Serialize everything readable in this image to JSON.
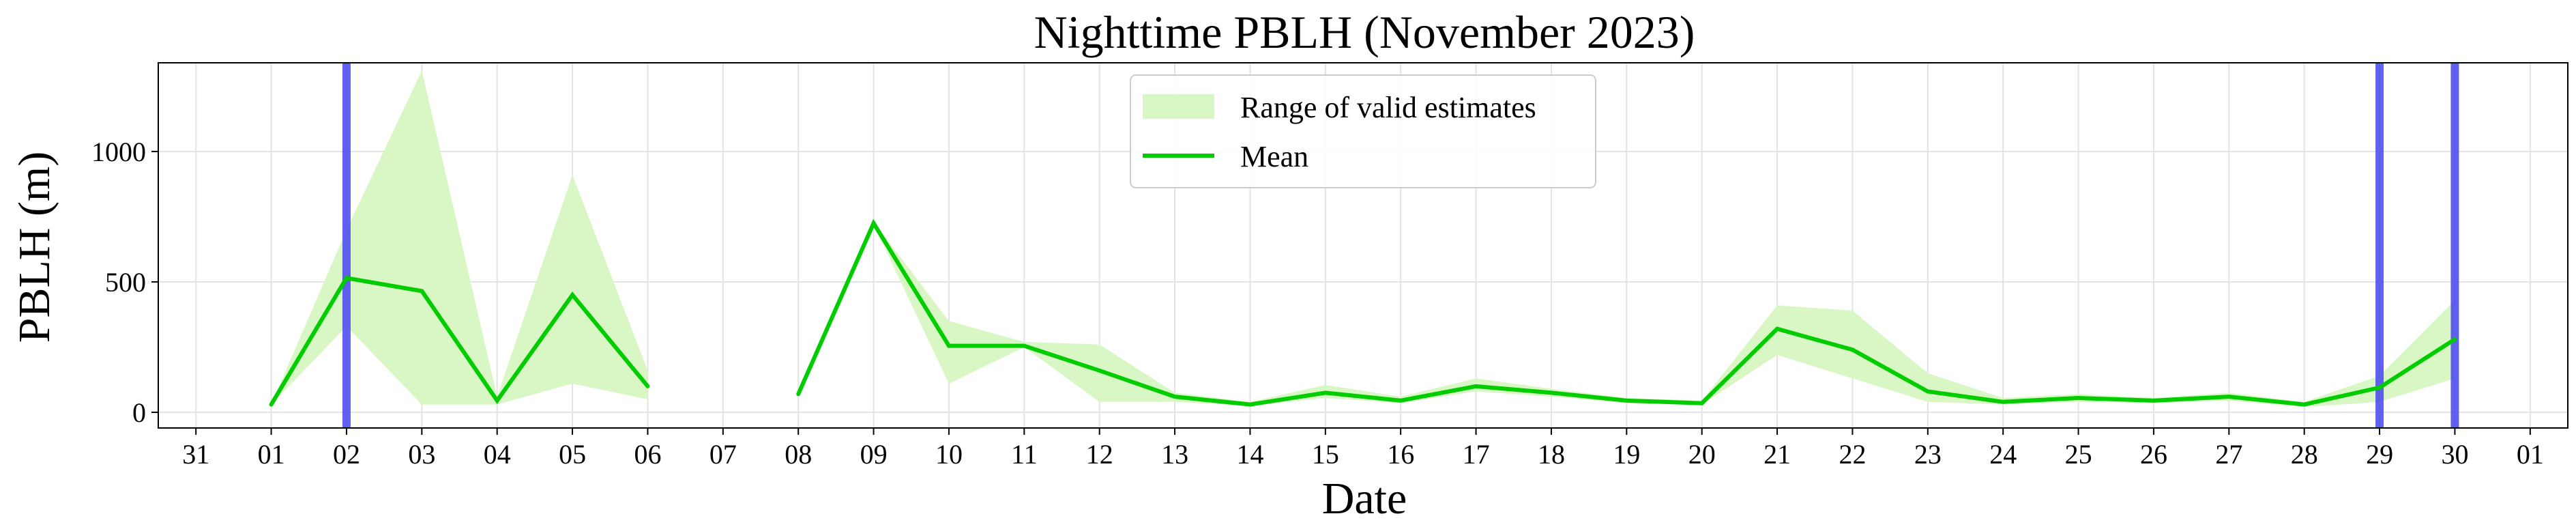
{
  "chart_data": {
    "type": "line",
    "title": "Nighttime PBLH (November 2023)",
    "xlabel": "Date",
    "ylabel": "PBLH (m)",
    "x_tick_labels": [
      "31",
      "01",
      "02",
      "03",
      "04",
      "05",
      "06",
      "07",
      "08",
      "09",
      "10",
      "11",
      "12",
      "13",
      "14",
      "15",
      "16",
      "17",
      "18",
      "19",
      "20",
      "21",
      "22",
      "23",
      "24",
      "25",
      "26",
      "27",
      "28",
      "29",
      "30",
      "01"
    ],
    "y_ticks": [
      0,
      500,
      1000
    ],
    "xlim": [
      -0.5,
      31.5
    ],
    "ylim": [
      -60,
      1340
    ],
    "grid": true,
    "legend_position": "top-center",
    "legend": [
      {
        "label": "Range of valid estimates",
        "kind": "band"
      },
      {
        "label": "Mean",
        "kind": "line"
      }
    ],
    "colors": {
      "mean_line": "#00cc00",
      "range_band": "#d9f7c4",
      "vertical_markers": "#4a4aef",
      "grid": "#e3e3e3"
    },
    "vertical_marker_dates": [
      "02",
      "29",
      "30"
    ],
    "series": [
      {
        "name": "Mean",
        "segments": [
          [
            {
              "x": "01",
              "y": 30
            },
            {
              "x": "02",
              "y": 515
            },
            {
              "x": "03",
              "y": 465
            },
            {
              "x": "04",
              "y": 45
            },
            {
              "x": "05",
              "y": 450
            },
            {
              "x": "06",
              "y": 100
            }
          ],
          [
            {
              "x": "08",
              "y": 70
            },
            {
              "x": "09",
              "y": 725
            },
            {
              "x": "10",
              "y": 255
            },
            {
              "x": "11",
              "y": 255
            },
            {
              "x": "12",
              "y": 160
            },
            {
              "x": "13",
              "y": 60
            },
            {
              "x": "14",
              "y": 30
            },
            {
              "x": "15",
              "y": 75
            },
            {
              "x": "16",
              "y": 45
            },
            {
              "x": "17",
              "y": 100
            },
            {
              "x": "18",
              "y": 75
            },
            {
              "x": "19",
              "y": 45
            },
            {
              "x": "20",
              "y": 35
            },
            {
              "x": "21",
              "y": 320
            },
            {
              "x": "22",
              "y": 240
            },
            {
              "x": "23",
              "y": 80
            },
            {
              "x": "24",
              "y": 40
            },
            {
              "x": "25",
              "y": 55
            },
            {
              "x": "26",
              "y": 45
            },
            {
              "x": "27",
              "y": 60
            },
            {
              "x": "28",
              "y": 30
            },
            {
              "x": "29",
              "y": 95
            },
            {
              "x": "30",
              "y": 280
            }
          ]
        ]
      },
      {
        "name": "Range of valid estimates",
        "segments": [
          [
            {
              "x": "01",
              "low": 30,
              "high": 30
            },
            {
              "x": "02",
              "low": 330,
              "high": 700
            },
            {
              "x": "03",
              "low": 30,
              "high": 1310
            },
            {
              "x": "04",
              "low": 30,
              "high": 60
            },
            {
              "x": "05",
              "low": 110,
              "high": 910
            },
            {
              "x": "06",
              "low": 50,
              "high": 160
            }
          ],
          [
            {
              "x": "08",
              "low": 70,
              "high": 70
            },
            {
              "x": "09",
              "low": 720,
              "high": 730
            },
            {
              "x": "10",
              "low": 110,
              "high": 350
            },
            {
              "x": "11",
              "low": 250,
              "high": 270
            },
            {
              "x": "12",
              "low": 40,
              "high": 260
            },
            {
              "x": "13",
              "low": 40,
              "high": 75
            },
            {
              "x": "14",
              "low": 25,
              "high": 40
            },
            {
              "x": "15",
              "low": 55,
              "high": 105
            },
            {
              "x": "16",
              "low": 35,
              "high": 60
            },
            {
              "x": "17",
              "low": 80,
              "high": 130
            },
            {
              "x": "18",
              "low": 60,
              "high": 90
            },
            {
              "x": "19",
              "low": 35,
              "high": 55
            },
            {
              "x": "20",
              "low": 30,
              "high": 45
            },
            {
              "x": "21",
              "low": 220,
              "high": 410
            },
            {
              "x": "22",
              "low": 130,
              "high": 390
            },
            {
              "x": "23",
              "low": 40,
              "high": 150
            },
            {
              "x": "24",
              "low": 30,
              "high": 55
            },
            {
              "x": "25",
              "low": 40,
              "high": 70
            },
            {
              "x": "26",
              "low": 35,
              "high": 55
            },
            {
              "x": "27",
              "low": 45,
              "high": 75
            },
            {
              "x": "28",
              "low": 20,
              "high": 40
            },
            {
              "x": "29",
              "low": 40,
              "high": 140
            },
            {
              "x": "30",
              "low": 130,
              "high": 430
            }
          ]
        ]
      }
    ]
  }
}
